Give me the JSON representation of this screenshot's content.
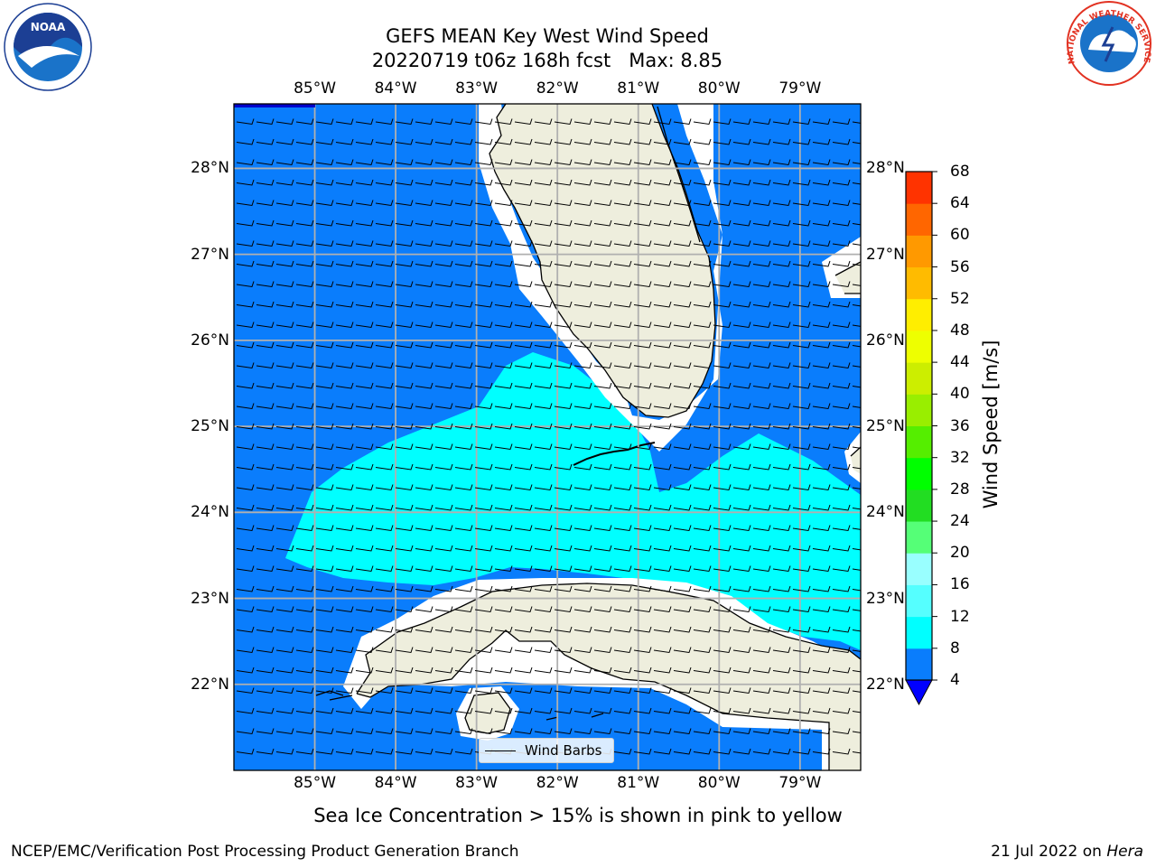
{
  "title": {
    "line1": "GEFS MEAN Key West Wind Speed",
    "line2": "20220719 t06z 168h fcst   Max: 8.85"
  },
  "map": {
    "lon_range": [
      -86.0,
      -78.25
    ],
    "lat_range": [
      21.0,
      28.75
    ],
    "lon_ticks": [
      {
        "value": -85,
        "label": "85°W"
      },
      {
        "value": -84,
        "label": "84°W"
      },
      {
        "value": -83,
        "label": "83°W"
      },
      {
        "value": -82,
        "label": "82°W"
      },
      {
        "value": -81,
        "label": "81°W"
      },
      {
        "value": -80,
        "label": "80°W"
      },
      {
        "value": -79,
        "label": "79°W"
      }
    ],
    "lat_ticks": [
      {
        "value": 22,
        "label": "22°N"
      },
      {
        "value": 23,
        "label": "23°N"
      },
      {
        "value": 24,
        "label": "24°N"
      },
      {
        "value": 25,
        "label": "25°N"
      },
      {
        "value": 26,
        "label": "26°N"
      },
      {
        "value": 27,
        "label": "27°N"
      },
      {
        "value": 28,
        "label": "28°N"
      }
    ],
    "colors": {
      "ocean_4_8": "#0a7dfc",
      "ocean_8_12": "#00ffff",
      "land": "#eeeedd",
      "coast": "#000000",
      "grid": "#b0b0b0"
    }
  },
  "colorbar": {
    "label": "Wind Speed [m/s]",
    "levels": [
      4,
      8,
      12,
      16,
      20,
      24,
      28,
      32,
      36,
      40,
      44,
      48,
      52,
      56,
      60,
      64,
      68
    ],
    "colors": [
      "#0a7dfc",
      "#00ffff",
      "#55ffff",
      "#99ffff",
      "#55ff77",
      "#22dd22",
      "#00ff00",
      "#55ee00",
      "#99ee00",
      "#ccee00",
      "#eeff00",
      "#ffee00",
      "#ffbb00",
      "#ff9900",
      "#ff6600",
      "#ff3300",
      "#ff0000"
    ],
    "extend_min_color": "#0000ff"
  },
  "legend": {
    "label": "Wind Barbs"
  },
  "footer": {
    "note": "Sea Ice Concentration > 15% is shown in pink to yellow",
    "credit_left": "NCEP/EMC/Verification Post Processing Product Generation Branch",
    "credit_date": "21 Jul 2022 on",
    "credit_host": "Hera"
  },
  "logos": {
    "noaa": "NOAA",
    "nws": "NATIONAL WEATHER SERVICE"
  }
}
